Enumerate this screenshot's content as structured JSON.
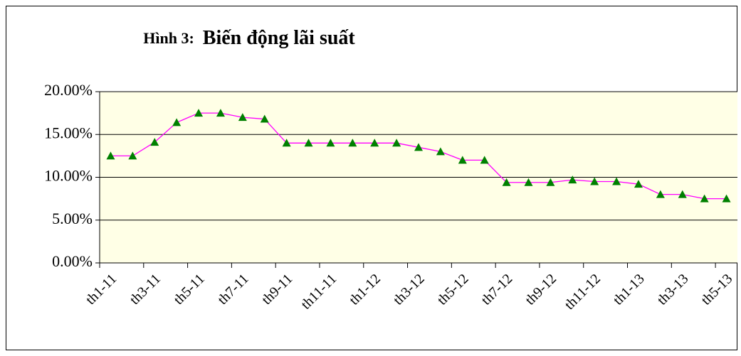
{
  "chart_data": {
    "type": "line",
    "figure_label": "Hình 3:",
    "title": "Biến động lãi suất",
    "categories": [
      "th1-11",
      null,
      "th3-11",
      null,
      "th5-11",
      null,
      "th7-11",
      null,
      "th9-11",
      null,
      "th11-11",
      null,
      "th1-12",
      null,
      "th3-12",
      null,
      "th5-12",
      null,
      "th7-12",
      null,
      "th9-12",
      null,
      "th11-12",
      null,
      "th1-13",
      null,
      "th3-13",
      null,
      "th5-13"
    ],
    "series": [
      {
        "color": "#ff00ff",
        "marker_color": "#008000",
        "values": [
          12.5,
          12.5,
          14.1,
          16.4,
          17.5,
          17.5,
          17,
          16.8,
          14,
          14,
          14,
          14,
          14,
          14,
          13.5,
          13,
          12,
          12,
          9.4,
          9.4,
          9.4,
          9.7,
          9.5,
          9.5,
          9.2,
          8,
          8,
          7.5,
          7.5
        ]
      }
    ],
    "ylim": [
      0,
      20
    ],
    "yticks": [
      {
        "value": 0,
        "label": "0.00%"
      },
      {
        "value": 5,
        "label": "5.00%"
      },
      {
        "value": 10,
        "label": "10.00%"
      },
      {
        "value": 15,
        "label": "15.00%"
      },
      {
        "value": 20,
        "label": "20.00%"
      }
    ],
    "grid": true,
    "plot_background": "#ffffe6"
  }
}
